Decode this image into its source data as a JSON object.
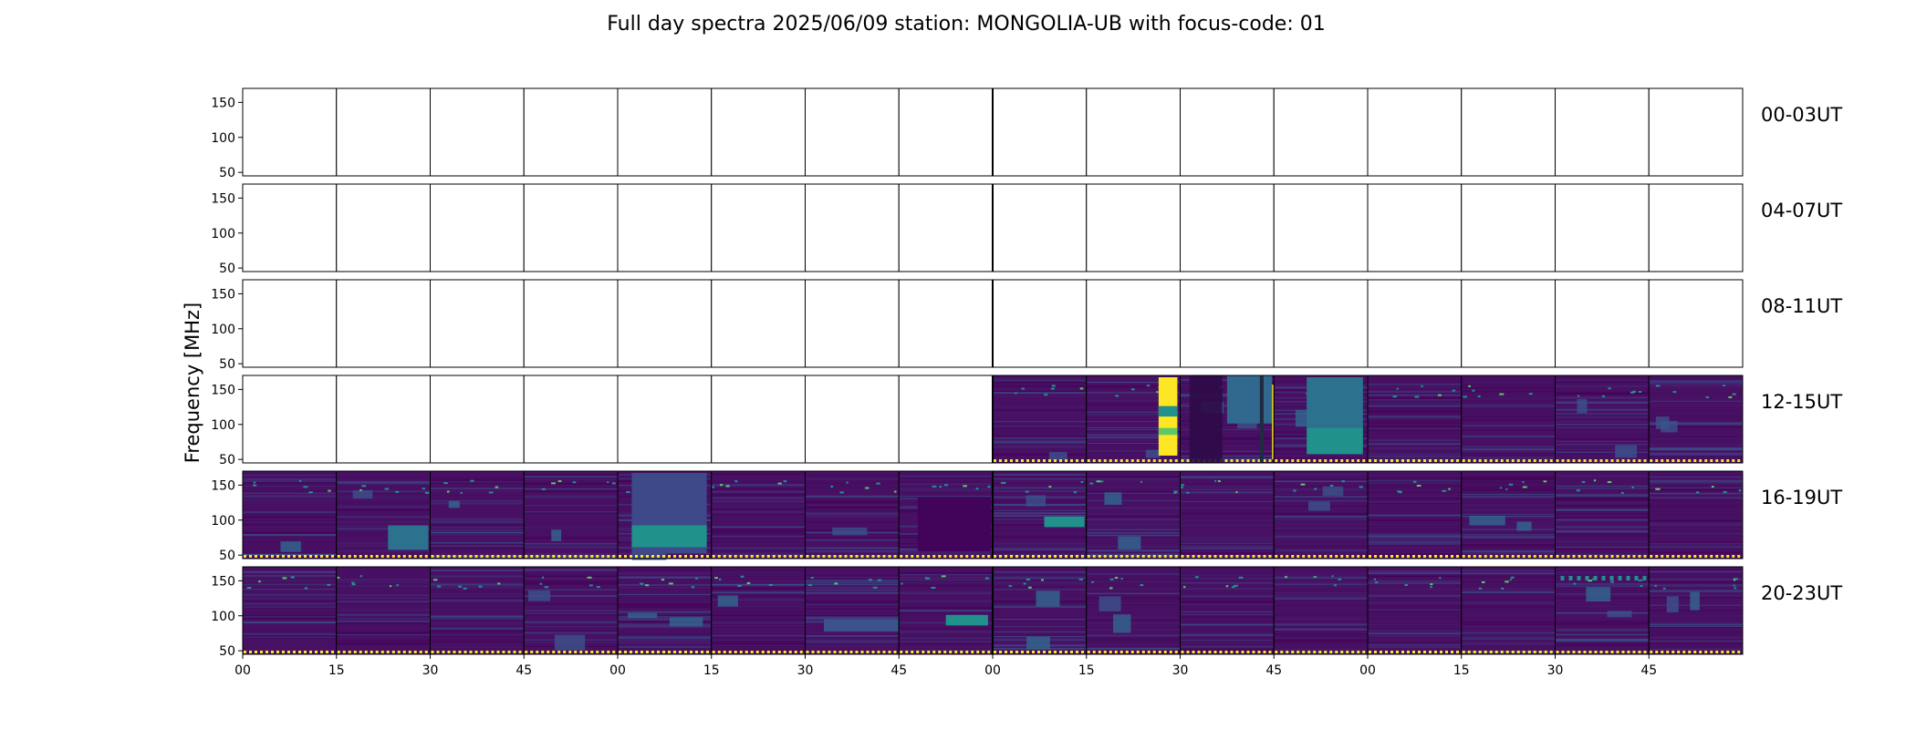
{
  "chart_data": {
    "type": "heatmap",
    "title": "Full day spectra 2025/06/09 station: MONGOLIA-UB with focus-code: 01",
    "ylabel": "Frequency [MHz]",
    "xlabel": "",
    "ylim": [
      45,
      170
    ],
    "y_ticks": [
      "150",
      "100",
      "50"
    ],
    "x_ticks": [
      "00",
      "15",
      "30",
      "45",
      "00",
      "15",
      "30",
      "45",
      "00",
      "15",
      "30",
      "45",
      "00",
      "15",
      "30",
      "45"
    ],
    "colormap": [
      "#440154",
      "#3b528b",
      "#21918c",
      "#5ec962",
      "#fde725"
    ],
    "panels_per_row": 16,
    "rows": [
      {
        "label": "00-03UT",
        "data_from_panel": 16
      },
      {
        "label": "04-07UT",
        "data_from_panel": 16
      },
      {
        "label": "08-11UT",
        "data_from_panel": 16
      },
      {
        "label": "12-15UT",
        "data_from_panel": 8
      },
      {
        "label": "16-19UT",
        "data_from_panel": 0
      },
      {
        "label": "20-23UT",
        "data_from_panel": 0
      }
    ]
  }
}
